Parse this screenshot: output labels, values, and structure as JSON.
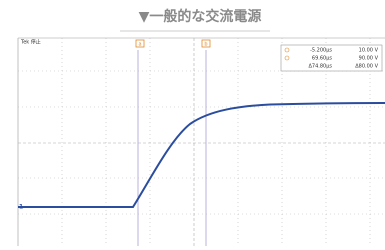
{
  "header": {
    "title": "▼一般的な交流電源"
  },
  "scope": {
    "status": "Tek 停止",
    "channel_marker": "1",
    "cursors": [
      "a",
      "b"
    ],
    "readout": {
      "rows": [
        [
          "-5.200μs",
          "10.00 V"
        ],
        [
          "69.60μs",
          "90.00 V"
        ],
        [
          "Δ74.80μs",
          "Δ80.00 V"
        ]
      ]
    }
  }
}
